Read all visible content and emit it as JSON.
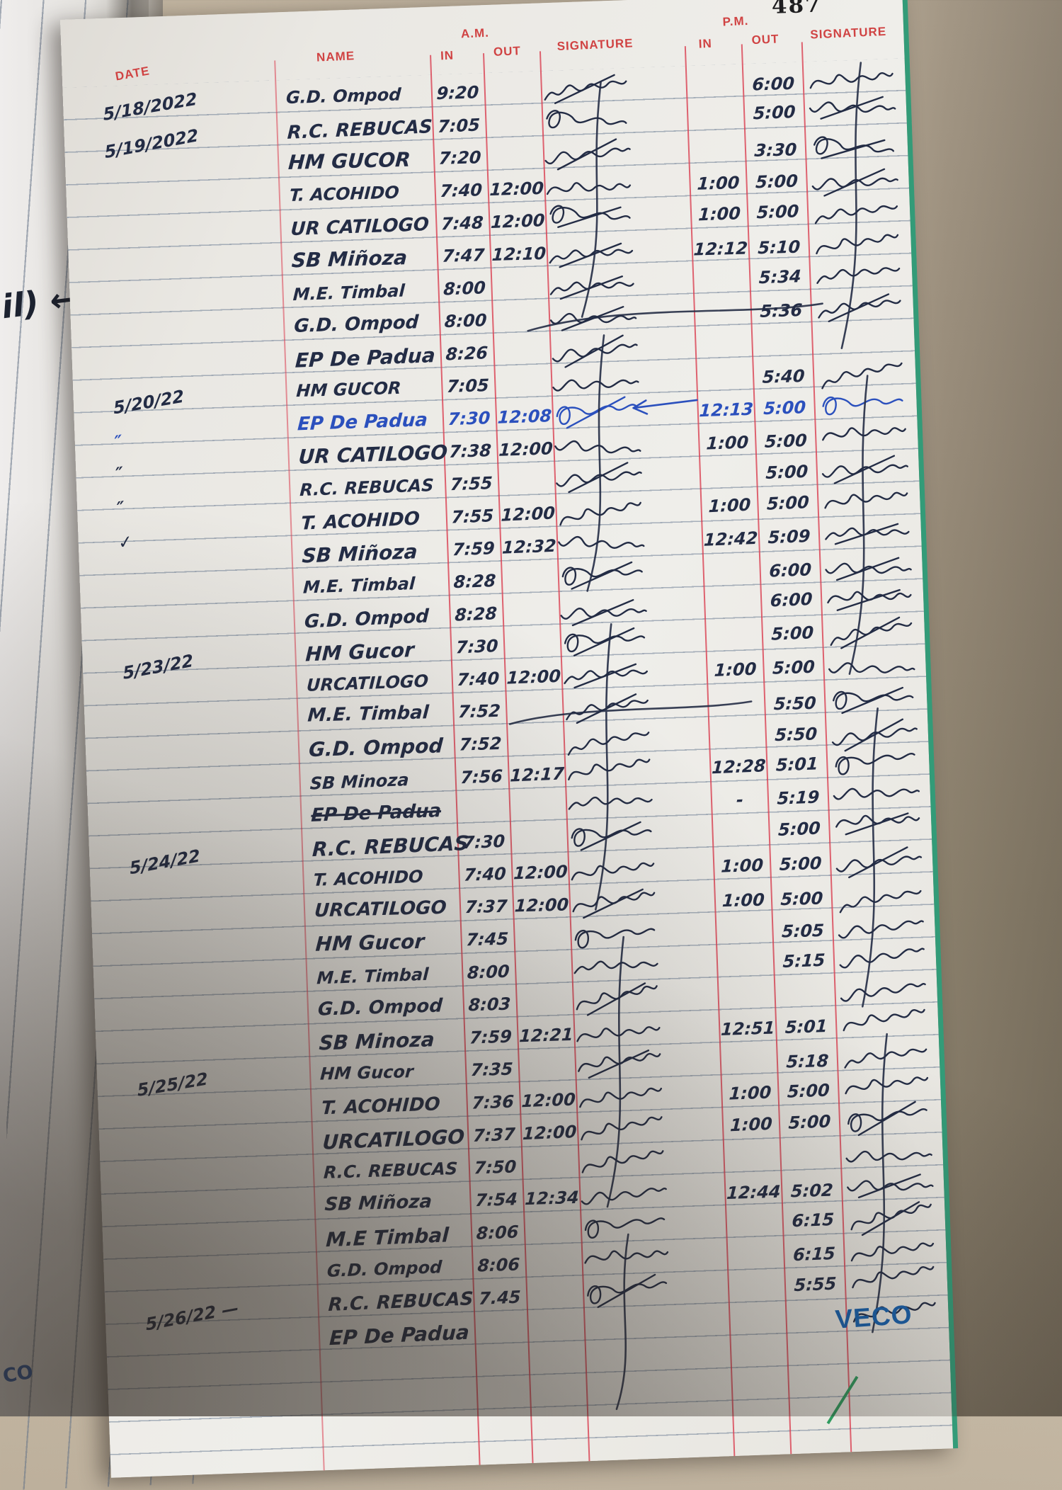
{
  "page": {
    "number": "487",
    "brand": "VECO",
    "side_note": "il) ←",
    "corner_note": "CO"
  },
  "header": {
    "date": "DATE",
    "name": "NAME",
    "am": "A.M.",
    "pm": "P.M.",
    "in_am": "IN",
    "out_am": "OUT",
    "signature_am": "SIGNATURE",
    "in_pm": "IN",
    "out_pm": "OUT",
    "signature_pm": "SIGNATURE"
  },
  "colors": {
    "header_red": "#d04343",
    "column_line_red": "#da3e50",
    "rule_blue_gray": "#7484a0",
    "ink_black": "#232c45",
    "ink_blue": "#2b50bd",
    "page_edge_green": "#339b78",
    "brand_blue": "#1761ae"
  },
  "rows": [
    {
      "date": "5/18/2022",
      "name": "G.D. Ompod",
      "am_in": "9:20",
      "pm_out": "6:00",
      "sig1": true,
      "sig2": true
    },
    {
      "date": "5/19/2022",
      "name": "R.C. REBUCAS",
      "am_in": "7:05",
      "pm_out": "5:00",
      "sig1": true,
      "sig2": true
    },
    {
      "name": "HM GUCOR",
      "am_in": "7:20",
      "pm_out": "3:30",
      "sig1": true,
      "sig2": true
    },
    {
      "name": "T. ACOHIDO",
      "am_in": "7:40",
      "am_out": "12:00",
      "pm_in": "1:00",
      "pm_out": "5:00",
      "sig1": true,
      "sig2": true
    },
    {
      "name": "UR CATILOGO",
      "am_in": "7:48",
      "am_out": "12:00",
      "pm_in": "1:00",
      "pm_out": "5:00",
      "sig1": true,
      "sig2": true
    },
    {
      "name": "SB Miñoza",
      "am_in": "7:47",
      "am_out": "12:10",
      "pm_in": "12:12",
      "pm_out": "5:10",
      "sig1": true,
      "sig2": true
    },
    {
      "name": "M.E. Timbal",
      "am_in": "8:00",
      "pm_out": "5:34",
      "sig1": true,
      "sig2": true
    },
    {
      "name": "G.D. Ompod",
      "am_in": "8:00",
      "pm_out": "5:36",
      "sig1": true,
      "sig2": true
    },
    {
      "name": "EP De Padua",
      "am_in": "8:26",
      "sig1": true
    },
    {
      "date": "5/20/22",
      "name": "HM GUCOR",
      "am_in": "7:05",
      "pm_out": "5:40",
      "sig1": true,
      "sig2": true
    },
    {
      "date": "″",
      "name": "EP De Padua",
      "am_in": "7:30",
      "am_out": "12:08",
      "pm_in": "12:13",
      "pm_out": "5:00",
      "ink": "blue",
      "sig1": true,
      "sig2": true
    },
    {
      "date": "″",
      "name": "UR CATILOGO",
      "am_in": "7:38",
      "am_out": "12:00",
      "pm_in": "1:00",
      "pm_out": "5:00",
      "sig1": true,
      "sig2": true
    },
    {
      "date": "″",
      "name": "R.C. REBUCAS",
      "am_in": "7:55",
      "pm_out": "5:00",
      "sig1": true,
      "sig2": true
    },
    {
      "date": "✓",
      "name": "T. ACOHIDO",
      "am_in": "7:55",
      "am_out": "12:00",
      "pm_in": "1:00",
      "pm_out": "5:00",
      "sig1": true,
      "sig2": true
    },
    {
      "name": "SB Miñoza",
      "am_in": "7:59",
      "am_out": "12:32",
      "pm_in": "12:42",
      "pm_out": "5:09",
      "sig1": true,
      "sig2": true
    },
    {
      "name": "M.E. Timbal",
      "am_in": "8:28",
      "pm_out": "6:00",
      "sig1": true,
      "sig2": true
    },
    {
      "name": "G.D. Ompod",
      "am_in": "8:28",
      "pm_out": "6:00",
      "sig1": true,
      "sig2": true
    },
    {
      "date": "5/23/22",
      "name": "HM Gucor",
      "am_in": "7:30",
      "pm_out": "5:00",
      "sig1": true,
      "sig2": true
    },
    {
      "name": "URCATILOGO",
      "am_in": "7:40",
      "am_out": "12:00",
      "pm_in": "1:00",
      "pm_out": "5:00",
      "sig1": true,
      "sig2": true
    },
    {
      "name": "M.E. Timbal",
      "am_in": "7:52",
      "pm_out": "5:50",
      "sig1": true,
      "sig2": true
    },
    {
      "name": "G.D. Ompod",
      "am_in": "7:52",
      "pm_out": "5:50",
      "sig1": true,
      "sig2": true
    },
    {
      "name": "SB Minoza",
      "am_in": "7:56",
      "am_out": "12:17",
      "pm_in": "12:28",
      "pm_out": "5:01",
      "sig1": true,
      "sig2": true
    },
    {
      "name": "EP De Padua",
      "strike": true,
      "pm_in": "-",
      "pm_out": "5:19",
      "sig1": true,
      "sig2": true
    },
    {
      "date": "5/24/22",
      "name": "R.C. REBUCAS",
      "am_in": "7:30",
      "pm_out": "5:00",
      "sig1": true,
      "sig2": true
    },
    {
      "name": "T. ACOHIDO",
      "am_in": "7:40",
      "am_out": "12:00",
      "pm_in": "1:00",
      "pm_out": "5:00",
      "sig1": true,
      "sig2": true
    },
    {
      "name": "URCATILOGO",
      "am_in": "7:37",
      "am_out": "12:00",
      "pm_in": "1:00",
      "pm_out": "5:00",
      "sig1": true,
      "sig2": true
    },
    {
      "name": "HM Gucor",
      "am_in": "7:45",
      "pm_out": "5:05",
      "sig1": true,
      "sig2": true
    },
    {
      "name": "M.E. Timbal",
      "am_in": "8:00",
      "pm_out": "5:15",
      "sig1": true,
      "sig2": true
    },
    {
      "name": "G.D. Ompod",
      "am_in": "8:03",
      "sig1": true,
      "sig2": true
    },
    {
      "name": "SB Minoza",
      "am_in": "7:59",
      "am_out": "12:21",
      "pm_in": "12:51",
      "pm_out": "5:01",
      "sig1": true,
      "sig2": true
    },
    {
      "date": "5/25/22",
      "name": "HM Gucor",
      "am_in": "7:35",
      "pm_out": "5:18",
      "sig1": true,
      "sig2": true
    },
    {
      "name": "T. ACOHIDO",
      "am_in": "7:36",
      "am_out": "12:00",
      "pm_in": "1:00",
      "pm_out": "5:00",
      "sig1": true,
      "sig2": true
    },
    {
      "name": "URCATILOGO",
      "am_in": "7:37",
      "am_out": "12:00",
      "pm_in": "1:00",
      "pm_out": "5:00",
      "sig1": true,
      "sig2": true
    },
    {
      "name": "R.C. REBUCAS",
      "am_in": "7:50",
      "sig1": true,
      "sig2": true
    },
    {
      "name": "SB Miñoza",
      "am_in": "7:54",
      "am_out": "12:34",
      "pm_in": "12:44",
      "pm_out": "5:02",
      "sig1": true,
      "sig2": true
    },
    {
      "name": "M.E Timbal",
      "am_in": "8:06",
      "pm_out": "6:15",
      "sig1": true,
      "sig2": true
    },
    {
      "name": "G.D. Ompod",
      "am_in": "8:06",
      "pm_out": "6:15",
      "sig1": true,
      "sig2": true
    },
    {
      "date": "5/26/22 —",
      "name": "R.C. REBUCAS",
      "am_in": "7.45",
      "pm_out": "5:55",
      "sig1": true,
      "sig2": true
    },
    {
      "name": "EP De Padua",
      "sig2": true
    }
  ]
}
